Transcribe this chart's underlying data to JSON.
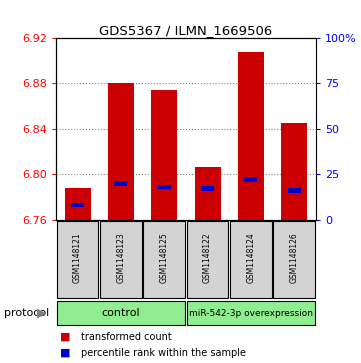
{
  "title": "GDS5367 / ILMN_1669506",
  "samples": [
    "GSM1148121",
    "GSM1148123",
    "GSM1148125",
    "GSM1148122",
    "GSM1148124",
    "GSM1148126"
  ],
  "transformed_counts": [
    6.788,
    6.88,
    6.874,
    6.806,
    6.908,
    6.845
  ],
  "percentile_ranks": [
    8,
    20,
    18,
    17,
    22,
    16
  ],
  "y_min": 6.76,
  "y_max": 6.92,
  "y_ticks": [
    6.76,
    6.8,
    6.84,
    6.88,
    6.92
  ],
  "y2_ticks": [
    0,
    25,
    50,
    75,
    100
  ],
  "bar_base": 6.76,
  "red_color": "#cc0000",
  "blue_color": "#0000cc",
  "control_label": "control",
  "overexp_label": "miR-542-3p overexpression",
  "protocol_label": "protocol",
  "legend_red": "transformed count",
  "legend_blue": "percentile rank within the sample",
  "control_bg": "#90EE90",
  "overexp_bg": "#90EE90",
  "sample_bg": "#d3d3d3",
  "bar_width": 0.6,
  "blue_bar_width": 0.3
}
